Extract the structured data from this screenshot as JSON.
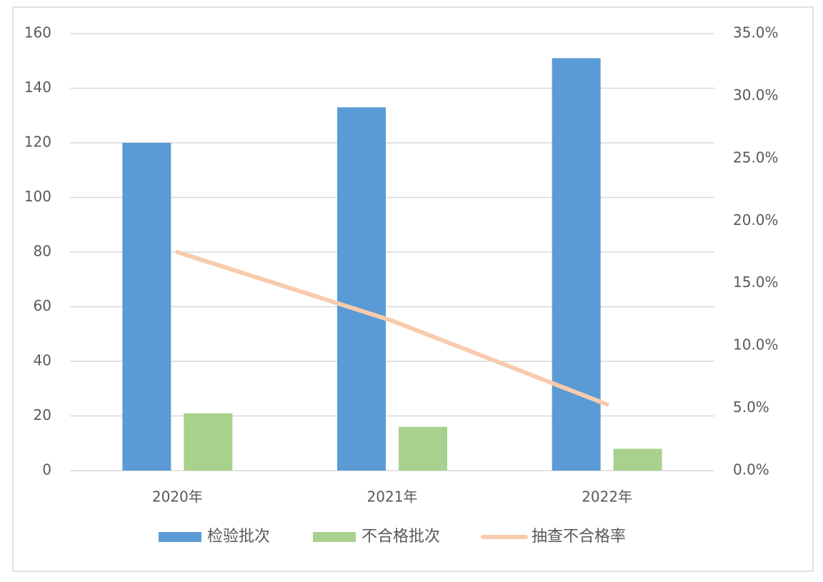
{
  "chart_data": {
    "type": "bar",
    "categories": [
      "2020年",
      "2021年",
      "2022年"
    ],
    "series": [
      {
        "name": "检验批次",
        "color": "#5b9bd5",
        "type": "bar",
        "values": [
          120,
          133,
          151
        ]
      },
      {
        "name": "不合格批次",
        "color": "#a9d18e",
        "type": "bar",
        "values": [
          21,
          16,
          8
        ]
      },
      {
        "name": "抽查不合格率",
        "color": "#f8cbad",
        "type": "line",
        "axis": "y2",
        "values": [
          17.5,
          12.0,
          5.3
        ]
      }
    ],
    "ylim": [
      0,
      160
    ],
    "yticks": [
      0,
      20,
      40,
      60,
      80,
      100,
      120,
      140,
      160
    ],
    "y2lim": [
      0,
      35
    ],
    "y2ticks": [
      {
        "value": 0,
        "label": "0.0%"
      },
      {
        "value": 5,
        "label": "5.0%"
      },
      {
        "value": 10,
        "label": "10.0%"
      },
      {
        "value": 15,
        "label": "15.0%"
      },
      {
        "value": 20,
        "label": "20.0%"
      },
      {
        "value": 25,
        "label": "25.0%"
      },
      {
        "value": 30,
        "label": "30.0%"
      },
      {
        "value": 35,
        "label": "35.0%"
      }
    ],
    "grid": true,
    "legend": "bottom"
  }
}
